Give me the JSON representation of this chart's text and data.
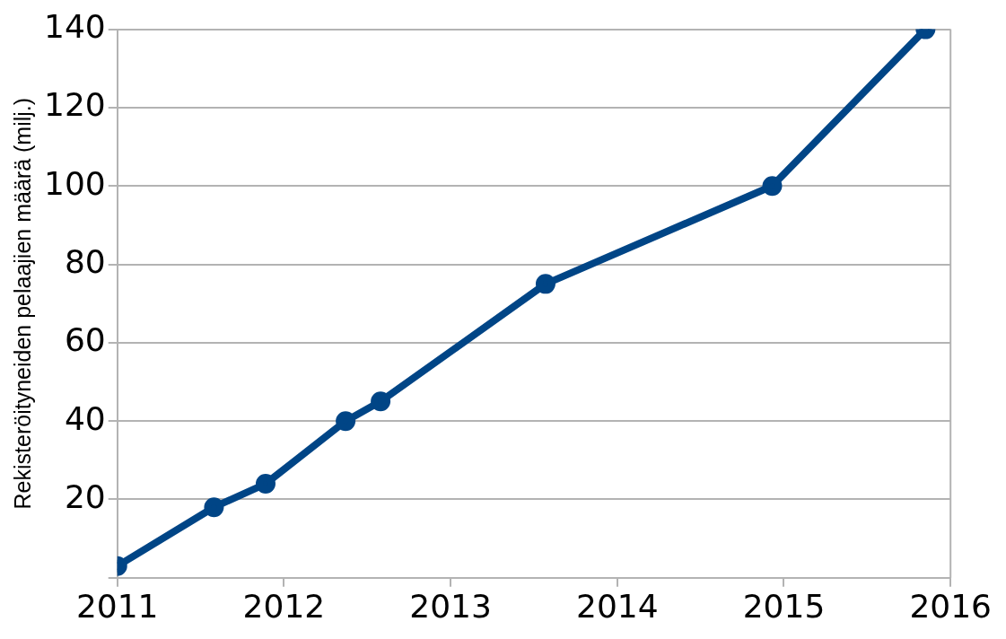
{
  "chart_data": {
    "type": "line",
    "ylabel": "Rekisteröityneiden pelaajien määrä (milj.)",
    "x": [
      2011.0,
      2011.58,
      2011.89,
      2012.37,
      2012.58,
      2013.57,
      2014.93,
      2015.85
    ],
    "series": [
      {
        "color": "#004586",
        "values": [
          3,
          18,
          24,
          40,
          45,
          75,
          100,
          140
        ]
      }
    ],
    "xlim": [
      2011,
      2016
    ],
    "xticks": [
      2011,
      2012,
      2013,
      2014,
      2015,
      2016
    ],
    "ylim": [
      0,
      140
    ],
    "yticks": [
      {
        "value": 0,
        "label": null
      },
      20,
      40,
      60,
      80,
      100,
      120,
      140
    ],
    "grid": "y",
    "legend": false,
    "marker": "circle",
    "line_style": "solid"
  }
}
